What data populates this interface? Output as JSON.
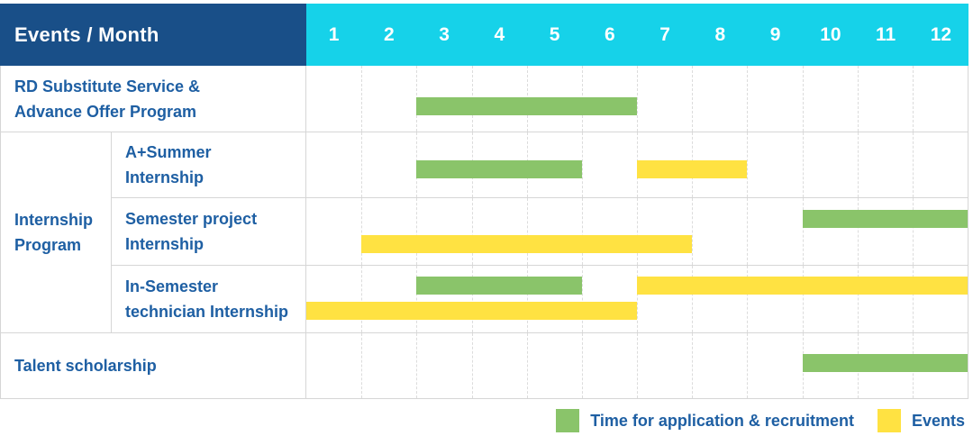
{
  "title": "Events / Month",
  "months": [
    "1",
    "2",
    "3",
    "4",
    "5",
    "6",
    "7",
    "8",
    "9",
    "10",
    "11",
    "12"
  ],
  "colors": {
    "header_bg": "#194f88",
    "months_bg": "#16d2e9",
    "application": "#8ac46a",
    "events": "#ffe242",
    "label_text": "#1e5fa3",
    "grid_line": "#d6d6d6"
  },
  "rows": {
    "rd": {
      "lines": [
        "RD Substitute Service &",
        "Advance Offer Program"
      ]
    },
    "group_internship": {
      "lines": [
        "Internship",
        "Program"
      ]
    },
    "a_summer": {
      "lines": [
        "A+Summer",
        "Internship"
      ]
    },
    "semester_project": {
      "lines": [
        "Semester project",
        "Internship"
      ]
    },
    "in_semester": {
      "lines": [
        "In-Semester",
        "technician Internship"
      ]
    },
    "talent": {
      "lines": [
        "Talent scholarship"
      ]
    }
  },
  "legend": {
    "items": [
      {
        "key": "application",
        "label": "Time for application & recruitment"
      },
      {
        "key": "events",
        "label": "Events"
      }
    ]
  },
  "chart_data": {
    "type": "gantt",
    "title": "Events / Month",
    "x_axis": {
      "label": "Month",
      "ticks": [
        1,
        2,
        3,
        4,
        5,
        6,
        7,
        8,
        9,
        10,
        11,
        12
      ],
      "range": [
        1,
        12
      ]
    },
    "legend": [
      {
        "label": "Time for application & recruitment",
        "color": "#8ac46a"
      },
      {
        "label": "Events",
        "color": "#ffe242"
      }
    ],
    "rows": [
      {
        "group": "",
        "label": "RD Substitute Service & Advance Offer Program",
        "bars": [
          {
            "series": "Time for application & recruitment",
            "start_month": 3,
            "end_month": 6,
            "line": 0
          }
        ]
      },
      {
        "group": "Internship Program",
        "label": "A+Summer Internship",
        "bars": [
          {
            "series": "Time for application & recruitment",
            "start_month": 3,
            "end_month": 5,
            "line": 0
          },
          {
            "series": "Events",
            "start_month": 7,
            "end_month": 8,
            "line": 0
          }
        ]
      },
      {
        "group": "Internship Program",
        "label": "Semester project Internship",
        "bars": [
          {
            "series": "Time for application & recruitment",
            "start_month": 10,
            "end_month": 12,
            "line": 0
          },
          {
            "series": "Events",
            "start_month": 2,
            "end_month": 7,
            "line": 1
          }
        ]
      },
      {
        "group": "Internship Program",
        "label": "In-Semester technician Internship",
        "bars": [
          {
            "series": "Time for application & recruitment",
            "start_month": 3,
            "end_month": 5,
            "line": 0
          },
          {
            "series": "Events",
            "start_month": 7,
            "end_month": 12,
            "line": 0
          },
          {
            "series": "Events",
            "start_month": 1,
            "end_month": 6,
            "line": 1
          }
        ]
      },
      {
        "group": "",
        "label": "Talent scholarship",
        "bars": [
          {
            "series": "Time for application & recruitment",
            "start_month": 10,
            "end_month": 12,
            "line": 0
          }
        ]
      }
    ]
  }
}
